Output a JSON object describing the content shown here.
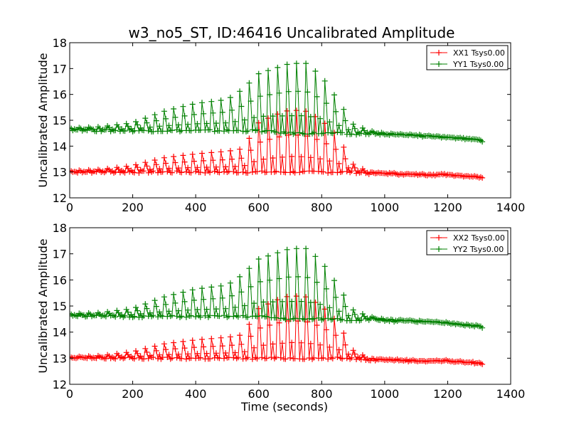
{
  "figure": {
    "title": "w3_no5_ST, ID:46416 Uncalibrated Amplitude"
  },
  "colors": {
    "xx": "#ff0000",
    "yy": "#008000",
    "axes": "#000000",
    "background": "#ffffff"
  },
  "chart_data": [
    {
      "type": "line",
      "title": "w3_no5_ST, ID:46416 Uncalibrated Amplitude",
      "xlabel": "",
      "ylabel": "Uncalibrated Amplitude",
      "xlim": [
        0,
        1400
      ],
      "ylim": [
        12,
        18
      ],
      "xticks": [
        "0",
        "200",
        "400",
        "600",
        "800",
        "1000",
        "1200",
        "1400"
      ],
      "yticks": [
        "12",
        "13",
        "14",
        "15",
        "16",
        "17",
        "18"
      ],
      "legend_position": "top-right",
      "grid": false,
      "series": [
        {
          "name": "XX1 Tsys0.00",
          "color": "#ff0000",
          "marker": "+",
          "x": [
            0,
            100,
            200,
            300,
            400,
            500,
            550,
            600,
            650,
            700,
            750,
            800,
            850,
            900,
            950,
            1000,
            1100,
            1200,
            1310
          ],
          "low": [
            13.0,
            13.0,
            13.0,
            13.0,
            13.0,
            13.0,
            13.0,
            13.0,
            13.0,
            13.0,
            13.0,
            13.0,
            13.0,
            13.0,
            12.95,
            12.95,
            12.9,
            12.9,
            12.8
          ],
          "high": [
            13.05,
            13.1,
            13.25,
            13.55,
            13.7,
            13.8,
            13.9,
            14.9,
            15.2,
            15.4,
            15.35,
            15.0,
            14.4,
            13.3,
            13.0,
            12.95,
            12.9,
            12.9,
            12.8
          ]
        },
        {
          "name": "YY1 Tsys0.00",
          "color": "#008000",
          "marker": "+",
          "x": [
            0,
            100,
            200,
            300,
            400,
            500,
            550,
            600,
            650,
            700,
            750,
            800,
            850,
            900,
            950,
            1000,
            1100,
            1200,
            1310
          ],
          "low": [
            14.65,
            14.6,
            14.6,
            14.6,
            14.6,
            14.6,
            14.6,
            14.6,
            14.55,
            14.5,
            14.5,
            14.5,
            14.5,
            14.45,
            14.5,
            14.45,
            14.4,
            14.35,
            14.2
          ],
          "high": [
            14.7,
            14.75,
            14.9,
            15.35,
            15.65,
            15.8,
            16.2,
            16.8,
            17.0,
            17.2,
            17.2,
            16.7,
            15.8,
            14.85,
            14.6,
            14.5,
            14.45,
            14.35,
            14.25
          ]
        }
      ]
    },
    {
      "type": "line",
      "title": "",
      "xlabel": "Time (seconds)",
      "ylabel": "Uncalibrated Amplitude",
      "xlim": [
        0,
        1400
      ],
      "ylim": [
        12,
        18
      ],
      "xticks": [
        "0",
        "200",
        "400",
        "600",
        "800",
        "1000",
        "1200",
        "1400"
      ],
      "yticks": [
        "12",
        "13",
        "14",
        "15",
        "16",
        "17",
        "18"
      ],
      "legend_position": "top-right",
      "grid": false,
      "series": [
        {
          "name": "XX2 Tsys0.00",
          "color": "#ff0000",
          "marker": "+",
          "x": [
            0,
            100,
            200,
            300,
            400,
            500,
            550,
            600,
            650,
            700,
            750,
            800,
            850,
            900,
            950,
            1000,
            1100,
            1200,
            1310
          ],
          "low": [
            13.0,
            13.0,
            13.0,
            13.0,
            13.0,
            13.0,
            13.0,
            13.0,
            13.0,
            13.0,
            13.0,
            13.0,
            13.0,
            13.0,
            12.95,
            12.95,
            12.9,
            12.9,
            12.8
          ],
          "high": [
            13.05,
            13.1,
            13.25,
            13.55,
            13.7,
            13.8,
            13.9,
            14.9,
            15.2,
            15.4,
            15.35,
            15.0,
            14.4,
            13.3,
            13.0,
            12.95,
            12.9,
            12.9,
            12.8
          ]
        },
        {
          "name": "YY2 Tsys0.00",
          "color": "#008000",
          "marker": "+",
          "x": [
            0,
            100,
            200,
            300,
            400,
            500,
            550,
            600,
            650,
            700,
            750,
            800,
            850,
            900,
            950,
            1000,
            1100,
            1200,
            1310
          ],
          "low": [
            14.65,
            14.6,
            14.6,
            14.6,
            14.6,
            14.6,
            14.6,
            14.6,
            14.55,
            14.5,
            14.5,
            14.5,
            14.5,
            14.45,
            14.5,
            14.45,
            14.4,
            14.35,
            14.2
          ],
          "high": [
            14.7,
            14.75,
            14.9,
            15.35,
            15.65,
            15.8,
            16.2,
            16.8,
            17.0,
            17.2,
            17.2,
            16.7,
            15.8,
            14.85,
            14.6,
            14.5,
            14.45,
            14.35,
            14.25
          ]
        }
      ]
    }
  ]
}
